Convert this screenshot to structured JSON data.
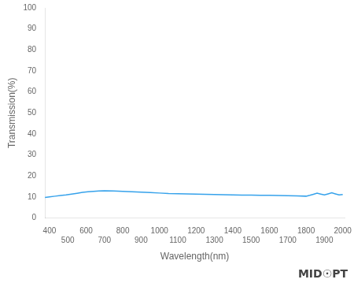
{
  "chart_data": {
    "type": "line",
    "xlabel": "Wavelength(nm)",
    "ylabel": "Transmission(%)",
    "x": [
      375,
      400,
      430,
      460,
      490,
      520,
      550,
      580,
      610,
      640,
      670,
      700,
      750,
      800,
      850,
      900,
      950,
      1000,
      1050,
      1100,
      1150,
      1200,
      1250,
      1300,
      1350,
      1400,
      1450,
      1500,
      1550,
      1600,
      1650,
      1700,
      1750,
      1800,
      1820,
      1840,
      1860,
      1880,
      1900,
      1920,
      1940,
      1960,
      1980,
      2000
    ],
    "values": [
      9.8,
      10.1,
      10.4,
      10.7,
      11.0,
      11.4,
      11.8,
      12.2,
      12.5,
      12.7,
      12.9,
      13.0,
      12.9,
      12.7,
      12.5,
      12.3,
      12.1,
      11.9,
      11.7,
      11.6,
      11.5,
      11.4,
      11.3,
      11.2,
      11.1,
      11.0,
      10.9,
      10.9,
      10.8,
      10.8,
      10.7,
      10.6,
      10.5,
      10.4,
      10.8,
      11.3,
      11.8,
      11.4,
      11.0,
      11.5,
      12.0,
      11.5,
      11.0,
      11.2
    ],
    "xlim": [
      375,
      2010
    ],
    "ylim": [
      0,
      100
    ],
    "xticks": [
      400,
      500,
      600,
      700,
      800,
      900,
      1000,
      1100,
      1200,
      1300,
      1400,
      1500,
      1600,
      1700,
      1800,
      1900,
      2000
    ],
    "yticks": [
      0,
      10,
      20,
      30,
      40,
      50,
      60,
      70,
      80,
      90,
      100
    ],
    "grid": false,
    "annotations": [
      "MID☉PT"
    ]
  }
}
